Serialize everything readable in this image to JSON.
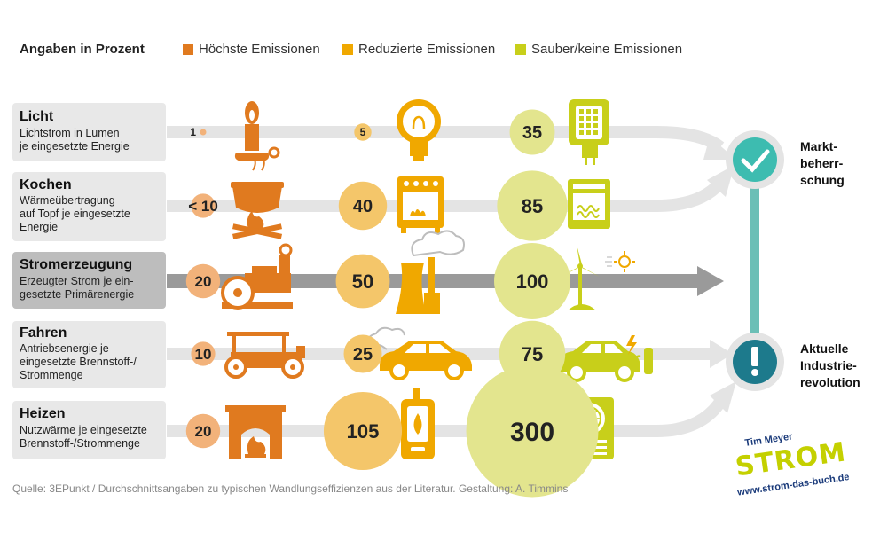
{
  "legend": {
    "title": "Angaben in Prozent",
    "items": [
      {
        "label": "Höchste Emissionen",
        "color": "#e07a1f"
      },
      {
        "label": "Reduzierte Emissionen",
        "color": "#f0a800"
      },
      {
        "label": "Sauber/keine Emissionen",
        "color": "#c8cf1a"
      }
    ]
  },
  "rows": [
    {
      "title": "Licht",
      "description": [
        "Lichtstrom in Lumen",
        "je eingesetzte Energie"
      ],
      "values": [
        "1",
        "5",
        "35"
      ],
      "highlighted": false,
      "icons": [
        "candle-icon",
        "light-bulb-icon",
        "led-lamp-icon"
      ]
    },
    {
      "title": "Kochen",
      "description": [
        "Wärmeübertragung",
        "auf Topf je eingesetzte",
        "Energie"
      ],
      "values": [
        "< 10",
        "40",
        "85"
      ],
      "highlighted": false,
      "icons": [
        "campfire-pot-icon",
        "gas-stove-icon",
        "electric-oven-icon"
      ]
    },
    {
      "title": "Stromerzeugung",
      "description": [
        "Erzeugter Strom je ein-",
        "gesetzte Primärenergie"
      ],
      "values": [
        "20",
        "50",
        "100"
      ],
      "highlighted": true,
      "icons": [
        "steam-engine-icon",
        "power-plant-icon",
        "wind-solar-icon"
      ]
    },
    {
      "title": "Fahren",
      "description": [
        "Antriebsenergie je",
        "eingesetzte Brennstoff-/",
        "Strommenge"
      ],
      "values": [
        "10",
        "25",
        "75"
      ],
      "highlighted": false,
      "icons": [
        "vintage-car-icon",
        "combustion-car-icon",
        "electric-car-icon"
      ]
    },
    {
      "title": "Heizen",
      "description": [
        "Nutzwärme je eingesetzte",
        "Brennstoff-/Strommenge"
      ],
      "values": [
        "20",
        "105",
        "300"
      ],
      "highlighted": false,
      "icons": [
        "fireplace-icon",
        "gas-boiler-icon",
        "heat-pump-icon"
      ]
    }
  ],
  "outcomes": {
    "top": [
      "Markt-",
      "beherr-",
      "schung"
    ],
    "bottom": [
      "Aktuelle",
      "Industrie-",
      "revolution"
    ],
    "icons": [
      "check-mark-icon",
      "exclamation-icon"
    ]
  },
  "source": "Quelle: 3EPunkt / Durchschnittsangaben zu typischen Wandlungseffizienzen aus der Literatur. Gestaltung: A. Timmins",
  "branding": {
    "author": "Tim Meyer",
    "name": "STROM",
    "url": "www.strom-das-buch.de"
  },
  "colors": {
    "high": "#e07a1f",
    "reduced": "#f0a800",
    "clean": "#c8cf1a",
    "bubble_high": "#f2b27a",
    "bubble_reduced": "#f4c66a",
    "bubble_clean": "#e3e58e",
    "check": "#3dbcb0",
    "alert": "#1d7a8c",
    "track": "#e4e4e4",
    "track_active": "#9a9a9a",
    "link": "#6bbfb6"
  }
}
